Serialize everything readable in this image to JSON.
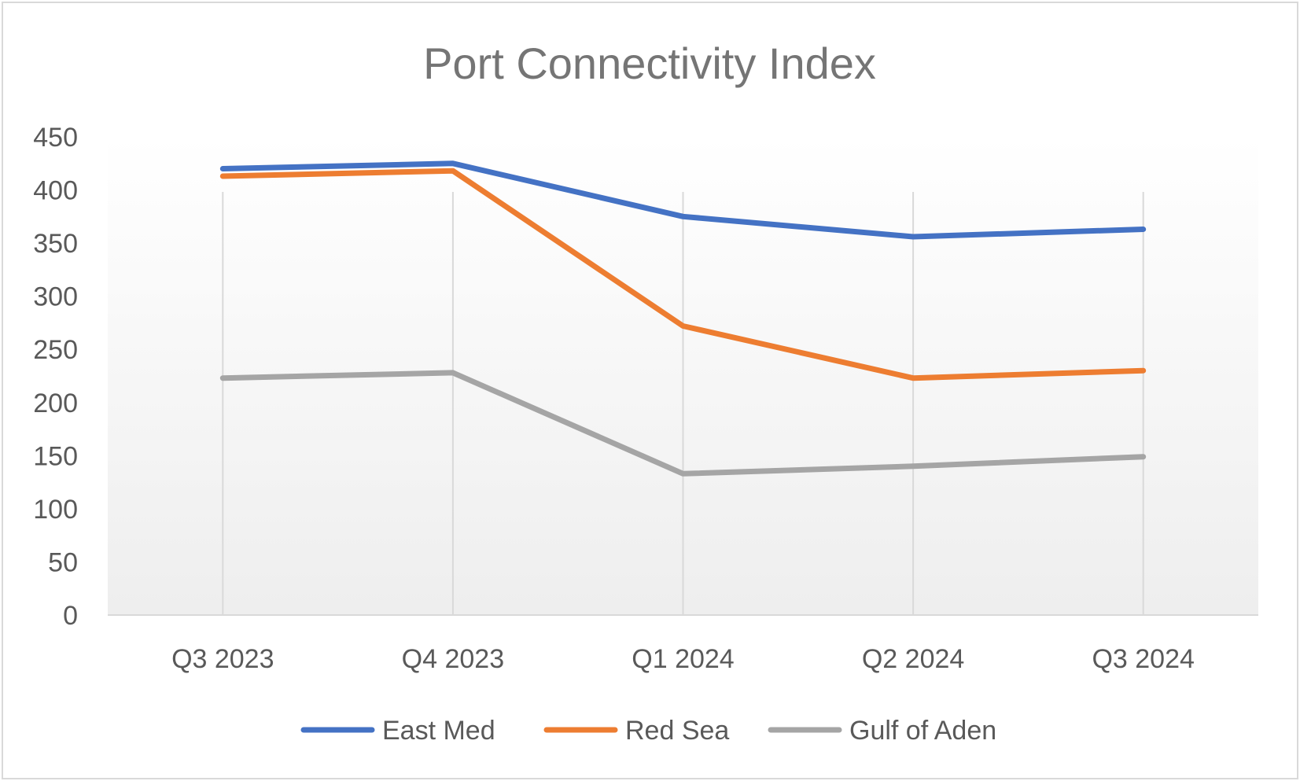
{
  "chart_data": {
    "type": "line",
    "title": "Port Connectivity Index",
    "xlabel": "",
    "ylabel": "",
    "categories": [
      "Q3 2023",
      "Q4 2023",
      "Q1 2024",
      "Q2 2024",
      "Q3 2024"
    ],
    "ylim": [
      0,
      450
    ],
    "yticks": [
      0,
      50,
      100,
      150,
      200,
      250,
      300,
      350,
      400,
      450
    ],
    "grid": "vertical",
    "legend_position": "bottom",
    "series": [
      {
        "name": "East Med",
        "color": "#4472c4",
        "values": [
          420,
          425,
          375,
          356,
          363
        ]
      },
      {
        "name": "Red Sea",
        "color": "#ed7d31",
        "values": [
          413,
          418,
          272,
          223,
          230
        ]
      },
      {
        "name": "Gulf of Aden",
        "color": "#a5a5a5",
        "values": [
          223,
          228,
          133,
          140,
          149
        ]
      }
    ]
  }
}
